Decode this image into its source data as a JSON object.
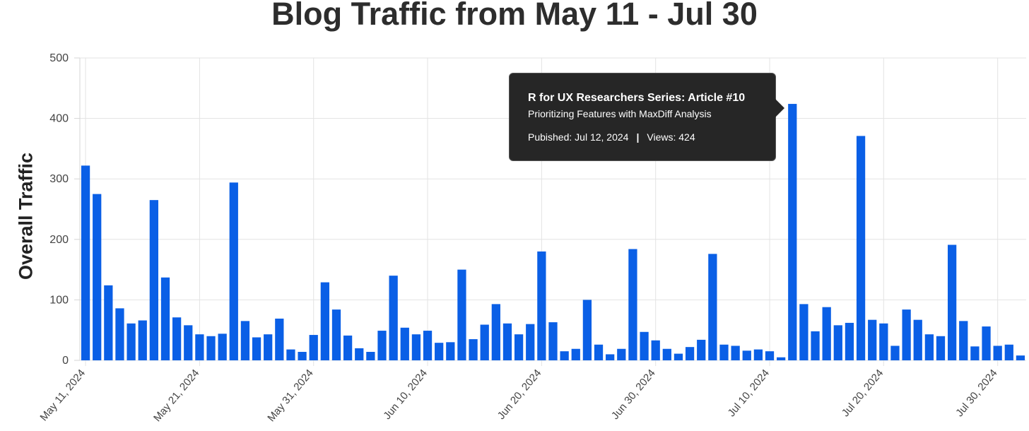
{
  "chart_data": {
    "type": "bar",
    "title": "Blog Traffic from May 11 - Jul 30",
    "xlabel": "",
    "ylabel": "Overall Traffic",
    "ylim": [
      0,
      500
    ],
    "yticks": [
      0,
      100,
      200,
      300,
      400,
      500
    ],
    "grid": true,
    "bar_color": "#0a5fe6",
    "x_start": "2024-05-11",
    "x_end": "2024-07-31",
    "x_tick_labels": [
      "May 11, 2024",
      "May 21, 2024",
      "May 31, 2024",
      "Jun 10, 2024",
      "Jun 20, 2024",
      "Jun 30, 2024",
      "Jul 10, 2024",
      "Jul 20, 2024",
      "Jul 30, 2024"
    ],
    "values": [
      322,
      275,
      124,
      86,
      61,
      66,
      265,
      137,
      71,
      58,
      43,
      40,
      44,
      294,
      65,
      38,
      43,
      69,
      18,
      14,
      42,
      129,
      84,
      41,
      20,
      14,
      49,
      140,
      54,
      43,
      49,
      29,
      30,
      150,
      35,
      59,
      93,
      61,
      43,
      60,
      180,
      63,
      15,
      19,
      100,
      26,
      10,
      19,
      184,
      47,
      33,
      19,
      11,
      22,
      34,
      176,
      26,
      24,
      16,
      18,
      15,
      5,
      424,
      93,
      48,
      88,
      58,
      62,
      371,
      67,
      61,
      24,
      84,
      67,
      43,
      40,
      191,
      65,
      23,
      56,
      24,
      26,
      8
    ]
  },
  "tooltip": {
    "title": "R for UX Researchers Series: Article #10",
    "subtitle": "Prioritizing Features with MaxDiff Analysis",
    "published": "Pubished: Jul 12, 2024",
    "separator": "|",
    "views": "Views: 424"
  }
}
